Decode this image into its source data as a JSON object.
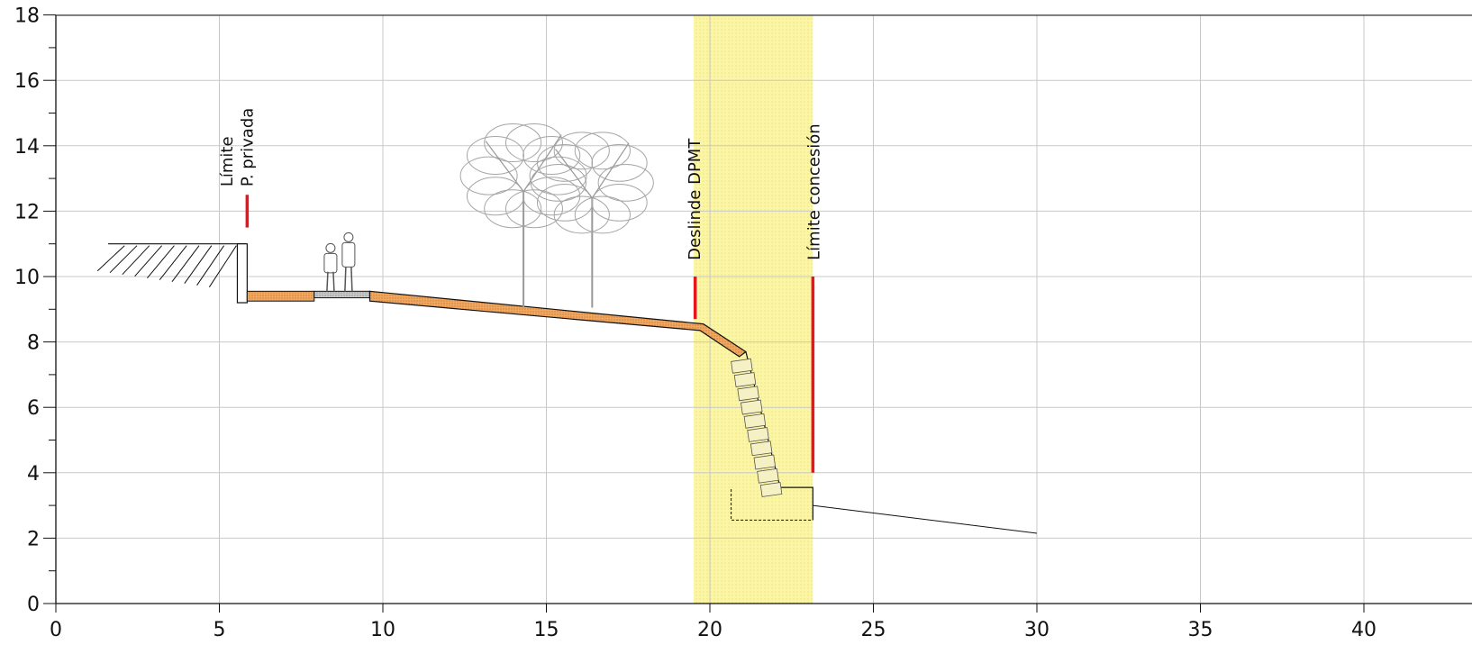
{
  "x_axis": {
    "tick_labels": [
      "0",
      "5",
      "10",
      "15",
      "20",
      "25",
      "30",
      "35",
      "40"
    ],
    "tick_values": [
      0,
      5,
      10,
      15,
      20,
      25,
      30,
      35,
      40
    ],
    "range": [
      0,
      42
    ]
  },
  "y_axis": {
    "tick_labels": [
      "0",
      "2",
      "4",
      "6",
      "8",
      "10",
      "12",
      "14",
      "16",
      "18"
    ],
    "tick_values": [
      0,
      2,
      4,
      6,
      8,
      10,
      12,
      14,
      16,
      18
    ],
    "range": [
      0,
      18
    ]
  },
  "grid": true,
  "markers": {
    "limite_privada": {
      "line1": "Límite",
      "line2": "P. privada",
      "x": 5.85,
      "y_from": 11.5,
      "y_to": 12.5
    },
    "deslinde": {
      "text": "Deslinde DPMT",
      "x": 19.55,
      "y_from": 8.7,
      "y_to": 10.0
    },
    "concesion": {
      "text": "Límite concesión",
      "x": 23.15,
      "y_from": 4.0,
      "y_to": 10.0
    }
  },
  "concession_band": {
    "x_from": 19.5,
    "x_to": 23.15
  },
  "colors": {
    "band": "#fbf6a6",
    "pavement": "#f0a860",
    "marker": "#e8141e",
    "grid": "#c8c8c8",
    "axis": "#111111"
  },
  "icons": [
    "tree-icon",
    "pedestrians-icon"
  ]
}
